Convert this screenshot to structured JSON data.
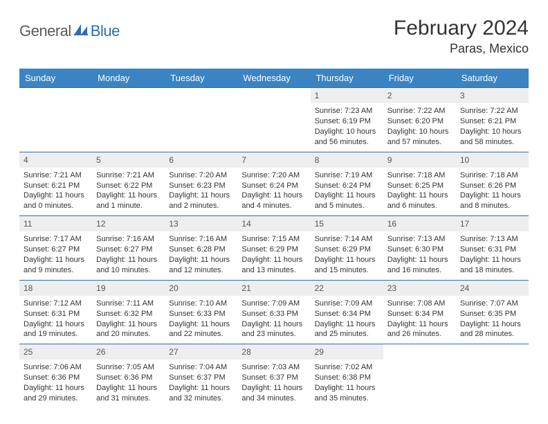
{
  "logo": {
    "part1": "General",
    "part2": "Blue"
  },
  "title": "February 2024",
  "location": "Paras, Mexico",
  "colors": {
    "header_bg": "#3b84c4",
    "header_text": "#ffffff",
    "row_border": "#2a6db5",
    "daynum_bg": "#eeeeee",
    "logo_gray": "#5a5a5a",
    "logo_blue": "#2a6db5"
  },
  "weekdays": [
    "Sunday",
    "Monday",
    "Tuesday",
    "Wednesday",
    "Thursday",
    "Friday",
    "Saturday"
  ],
  "weeks": [
    [
      {
        "day": "",
        "sunrise": "",
        "sunset": "",
        "daylight": ""
      },
      {
        "day": "",
        "sunrise": "",
        "sunset": "",
        "daylight": ""
      },
      {
        "day": "",
        "sunrise": "",
        "sunset": "",
        "daylight": ""
      },
      {
        "day": "",
        "sunrise": "",
        "sunset": "",
        "daylight": ""
      },
      {
        "day": "1",
        "sunrise": "Sunrise: 7:23 AM",
        "sunset": "Sunset: 6:19 PM",
        "daylight": "Daylight: 10 hours and 56 minutes."
      },
      {
        "day": "2",
        "sunrise": "Sunrise: 7:22 AM",
        "sunset": "Sunset: 6:20 PM",
        "daylight": "Daylight: 10 hours and 57 minutes."
      },
      {
        "day": "3",
        "sunrise": "Sunrise: 7:22 AM",
        "sunset": "Sunset: 6:21 PM",
        "daylight": "Daylight: 10 hours and 58 minutes."
      }
    ],
    [
      {
        "day": "4",
        "sunrise": "Sunrise: 7:21 AM",
        "sunset": "Sunset: 6:21 PM",
        "daylight": "Daylight: 11 hours and 0 minutes."
      },
      {
        "day": "5",
        "sunrise": "Sunrise: 7:21 AM",
        "sunset": "Sunset: 6:22 PM",
        "daylight": "Daylight: 11 hours and 1 minute."
      },
      {
        "day": "6",
        "sunrise": "Sunrise: 7:20 AM",
        "sunset": "Sunset: 6:23 PM",
        "daylight": "Daylight: 11 hours and 2 minutes."
      },
      {
        "day": "7",
        "sunrise": "Sunrise: 7:20 AM",
        "sunset": "Sunset: 6:24 PM",
        "daylight": "Daylight: 11 hours and 4 minutes."
      },
      {
        "day": "8",
        "sunrise": "Sunrise: 7:19 AM",
        "sunset": "Sunset: 6:24 PM",
        "daylight": "Daylight: 11 hours and 5 minutes."
      },
      {
        "day": "9",
        "sunrise": "Sunrise: 7:18 AM",
        "sunset": "Sunset: 6:25 PM",
        "daylight": "Daylight: 11 hours and 6 minutes."
      },
      {
        "day": "10",
        "sunrise": "Sunrise: 7:18 AM",
        "sunset": "Sunset: 6:26 PM",
        "daylight": "Daylight: 11 hours and 8 minutes."
      }
    ],
    [
      {
        "day": "11",
        "sunrise": "Sunrise: 7:17 AM",
        "sunset": "Sunset: 6:27 PM",
        "daylight": "Daylight: 11 hours and 9 minutes."
      },
      {
        "day": "12",
        "sunrise": "Sunrise: 7:16 AM",
        "sunset": "Sunset: 6:27 PM",
        "daylight": "Daylight: 11 hours and 10 minutes."
      },
      {
        "day": "13",
        "sunrise": "Sunrise: 7:16 AM",
        "sunset": "Sunset: 6:28 PM",
        "daylight": "Daylight: 11 hours and 12 minutes."
      },
      {
        "day": "14",
        "sunrise": "Sunrise: 7:15 AM",
        "sunset": "Sunset: 6:29 PM",
        "daylight": "Daylight: 11 hours and 13 minutes."
      },
      {
        "day": "15",
        "sunrise": "Sunrise: 7:14 AM",
        "sunset": "Sunset: 6:29 PM",
        "daylight": "Daylight: 11 hours and 15 minutes."
      },
      {
        "day": "16",
        "sunrise": "Sunrise: 7:13 AM",
        "sunset": "Sunset: 6:30 PM",
        "daylight": "Daylight: 11 hours and 16 minutes."
      },
      {
        "day": "17",
        "sunrise": "Sunrise: 7:13 AM",
        "sunset": "Sunset: 6:31 PM",
        "daylight": "Daylight: 11 hours and 18 minutes."
      }
    ],
    [
      {
        "day": "18",
        "sunrise": "Sunrise: 7:12 AM",
        "sunset": "Sunset: 6:31 PM",
        "daylight": "Daylight: 11 hours and 19 minutes."
      },
      {
        "day": "19",
        "sunrise": "Sunrise: 7:11 AM",
        "sunset": "Sunset: 6:32 PM",
        "daylight": "Daylight: 11 hours and 20 minutes."
      },
      {
        "day": "20",
        "sunrise": "Sunrise: 7:10 AM",
        "sunset": "Sunset: 6:33 PM",
        "daylight": "Daylight: 11 hours and 22 minutes."
      },
      {
        "day": "21",
        "sunrise": "Sunrise: 7:09 AM",
        "sunset": "Sunset: 6:33 PM",
        "daylight": "Daylight: 11 hours and 23 minutes."
      },
      {
        "day": "22",
        "sunrise": "Sunrise: 7:09 AM",
        "sunset": "Sunset: 6:34 PM",
        "daylight": "Daylight: 11 hours and 25 minutes."
      },
      {
        "day": "23",
        "sunrise": "Sunrise: 7:08 AM",
        "sunset": "Sunset: 6:34 PM",
        "daylight": "Daylight: 11 hours and 26 minutes."
      },
      {
        "day": "24",
        "sunrise": "Sunrise: 7:07 AM",
        "sunset": "Sunset: 6:35 PM",
        "daylight": "Daylight: 11 hours and 28 minutes."
      }
    ],
    [
      {
        "day": "25",
        "sunrise": "Sunrise: 7:06 AM",
        "sunset": "Sunset: 6:36 PM",
        "daylight": "Daylight: 11 hours and 29 minutes."
      },
      {
        "day": "26",
        "sunrise": "Sunrise: 7:05 AM",
        "sunset": "Sunset: 6:36 PM",
        "daylight": "Daylight: 11 hours and 31 minutes."
      },
      {
        "day": "27",
        "sunrise": "Sunrise: 7:04 AM",
        "sunset": "Sunset: 6:37 PM",
        "daylight": "Daylight: 11 hours and 32 minutes."
      },
      {
        "day": "28",
        "sunrise": "Sunrise: 7:03 AM",
        "sunset": "Sunset: 6:37 PM",
        "daylight": "Daylight: 11 hours and 34 minutes."
      },
      {
        "day": "29",
        "sunrise": "Sunrise: 7:02 AM",
        "sunset": "Sunset: 6:38 PM",
        "daylight": "Daylight: 11 hours and 35 minutes."
      },
      {
        "day": "",
        "sunrise": "",
        "sunset": "",
        "daylight": ""
      },
      {
        "day": "",
        "sunrise": "",
        "sunset": "",
        "daylight": ""
      }
    ]
  ]
}
